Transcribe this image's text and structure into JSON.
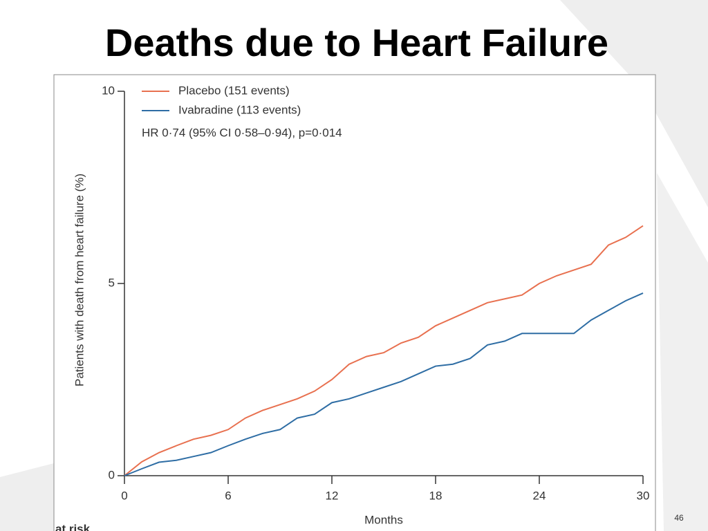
{
  "slide_title": "Deaths due to Heart Failure",
  "page_number": "46",
  "at_risk_label": "at risk",
  "chart_data": {
    "type": "line",
    "y_label": "Patients with death from heart failure (%)",
    "x_label": "Months",
    "annotation": "HR 0·74 (95% CI 0·58–0·94), p=0·014",
    "x": [
      0,
      1,
      2,
      3,
      4,
      5,
      6,
      7,
      8,
      9,
      10,
      11,
      12,
      13,
      14,
      15,
      16,
      17,
      18,
      19,
      20,
      21,
      22,
      23,
      24,
      25,
      26,
      27,
      28,
      29,
      30
    ],
    "series": [
      {
        "name": "Placebo (151 events)",
        "color": "#e8704f",
        "values": [
          0,
          0.36,
          0.6,
          0.78,
          0.95,
          1.05,
          1.2,
          1.5,
          1.7,
          1.85,
          2.0,
          2.2,
          2.5,
          2.9,
          3.1,
          3.2,
          3.45,
          3.6,
          3.9,
          4.1,
          4.3,
          4.5,
          4.6,
          4.7,
          5.0,
          5.2,
          5.35,
          5.5,
          6.0,
          6.2,
          6.5
        ]
      },
      {
        "name": "Ivabradine (113 events)",
        "color": "#2e6da4",
        "values": [
          0,
          0.18,
          0.35,
          0.4,
          0.5,
          0.6,
          0.78,
          0.95,
          1.1,
          1.2,
          1.5,
          1.6,
          1.9,
          2.0,
          2.15,
          2.3,
          2.45,
          2.65,
          2.85,
          2.9,
          3.05,
          3.4,
          3.5,
          3.7,
          3.7,
          3.7,
          3.7,
          4.05,
          4.3,
          4.55,
          4.75
        ]
      }
    ],
    "xlim": [
      0,
      30
    ],
    "xticks": [
      0,
      6,
      12,
      18,
      24,
      30
    ],
    "ylim": [
      0,
      10
    ],
    "yticks": [
      0,
      5,
      10
    ]
  }
}
